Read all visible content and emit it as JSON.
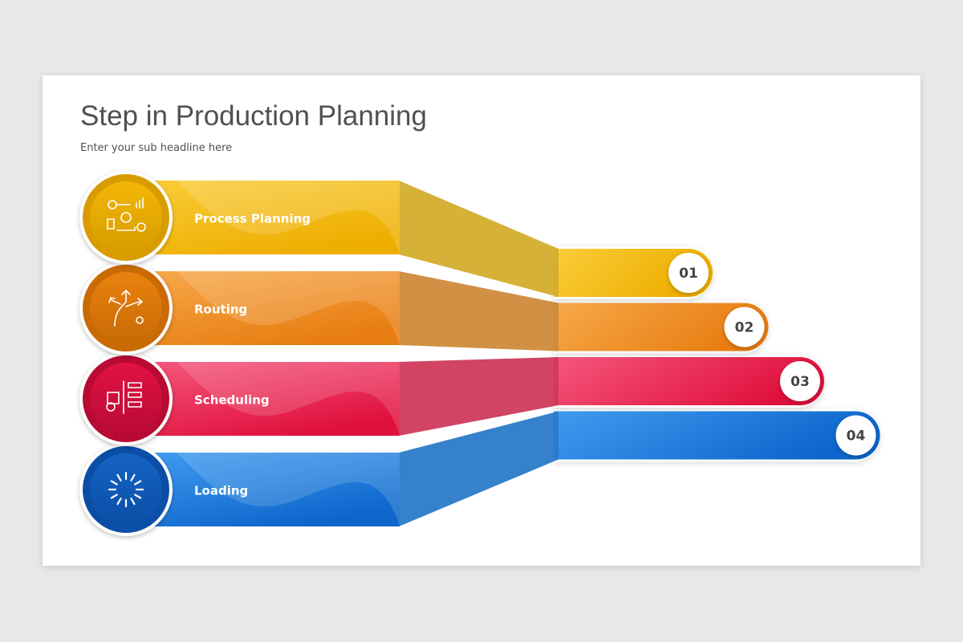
{
  "header": {
    "title": "Step in Production Planning",
    "subtitle": "Enter your sub headline here"
  },
  "steps": [
    {
      "label": "Process Planning",
      "number": "01"
    },
    {
      "label": "Routing",
      "number": "02"
    },
    {
      "label": "Scheduling",
      "number": "03"
    },
    {
      "label": "Loading",
      "number": "04"
    }
  ]
}
